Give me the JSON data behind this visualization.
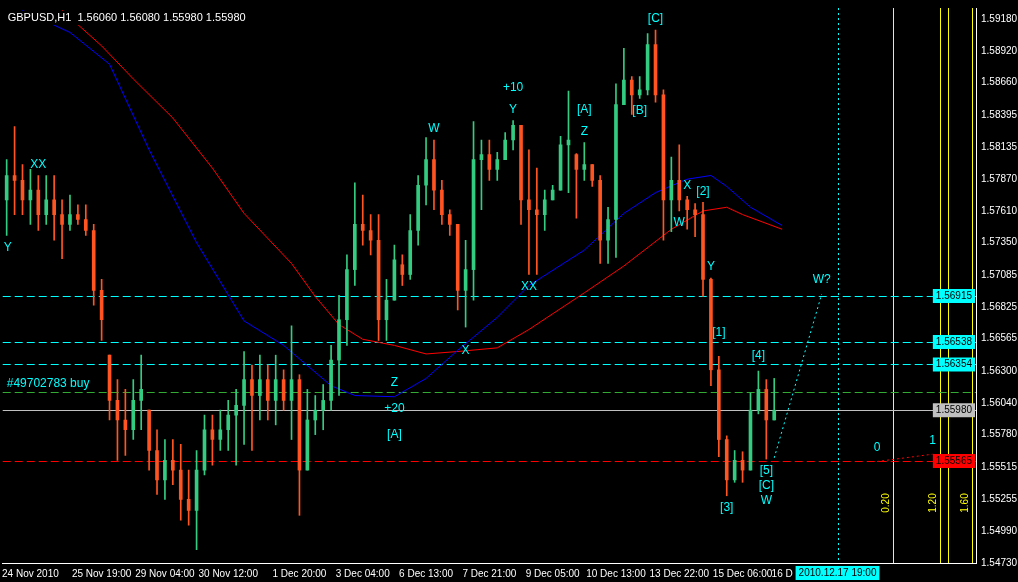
{
  "chart_data": {
    "type": "candlestick",
    "title": "GBPUSD,H1  1.56060 1.56080 1.55980 1.55980",
    "categories": [
      null,
      null,
      null,
      "24 Nov 2010",
      null,
      null,
      null,
      null,
      null,
      null,
      null,
      null,
      "25 Nov 19:00",
      null,
      null,
      null,
      null,
      null,
      null,
      null,
      "29 Nov 04:00",
      null,
      null,
      null,
      null,
      null,
      null,
      null,
      "30 Nov 12:00",
      null,
      null,
      null,
      null,
      null,
      null,
      null,
      null,
      "1 Dec 20:00",
      null,
      null,
      null,
      null,
      null,
      null,
      null,
      "3 Dec 04:00",
      null,
      null,
      null,
      null,
      null,
      null,
      null,
      "6 Dec 13:00",
      null,
      null,
      null,
      null,
      null,
      null,
      null,
      "7 Dec 21:00",
      null,
      null,
      null,
      null,
      null,
      null,
      null,
      "9 Dec 05:00",
      null,
      null,
      null,
      null,
      null,
      null,
      null,
      "10 Dec 13:00",
      null,
      null,
      null,
      null,
      null,
      null,
      null,
      "13 Dec 22:00",
      null,
      null,
      null,
      null,
      null,
      null,
      null,
      "15 Dec 06:00",
      null,
      null,
      null,
      null,
      "16 D",
      null,
      null,
      null,
      null,
      null,
      null,
      "2010.12.17 19:00",
      null,
      null,
      null,
      null,
      null,
      null,
      null,
      null,
      null,
      null,
      null,
      null,
      null,
      null,
      null,
      null,
      null
    ],
    "ylim": [
      1.5473,
      1.5927
    ],
    "yticks": [
      {
        "value": 1.5918,
        "label": "1.59180"
      },
      {
        "value": 1.5892,
        "label": "1.58920"
      },
      {
        "value": 1.5866,
        "label": "1.58660"
      },
      {
        "value": 1.58395,
        "label": "1.58395"
      },
      {
        "value": 1.58135,
        "label": "1.58135"
      },
      {
        "value": 1.5787,
        "label": "1.57870"
      },
      {
        "value": 1.5761,
        "label": "1.57610"
      },
      {
        "value": 1.5735,
        "label": "1.57350"
      },
      {
        "value": 1.57085,
        "label": "1.57085"
      },
      {
        "value": 1.56825,
        "label": "1.56825"
      },
      {
        "value": 1.56565,
        "label": "1.56565"
      },
      {
        "value": 1.563,
        "label": "1.56300"
      },
      {
        "value": 1.5604,
        "label": "1.56040"
      },
      {
        "value": 1.5578,
        "label": "1.55780"
      },
      {
        "value": 1.55515,
        "label": "1.55515"
      },
      {
        "value": 1.55255,
        "label": "1.55255"
      },
      {
        "value": 1.5499,
        "label": "1.54990"
      },
      {
        "value": 1.5473,
        "label": "1.54730"
      }
    ],
    "series": [
      {
        "type": "line",
        "color": "#0000ff",
        "values": [
          null,
          null,
          1.5925,
          null,
          null,
          null,
          null,
          null,
          1.5907,
          null,
          null,
          null,
          null,
          1.5881,
          null,
          null,
          null,
          null,
          1.5811,
          null,
          null,
          null,
          null,
          null,
          1.5735,
          null,
          null,
          null,
          null,
          null,
          1.5671,
          null,
          null,
          null,
          null,
          1.5651,
          null,
          null,
          null,
          null,
          null,
          1.5618,
          null,
          null,
          1.561,
          null,
          null,
          null,
          null,
          1.5609,
          null,
          null,
          null,
          1.5624,
          null,
          null,
          null,
          1.5647,
          null,
          null,
          null,
          null,
          1.5674,
          null,
          null,
          null,
          1.57,
          null,
          null,
          null,
          null,
          null,
          null,
          1.5729,
          null,
          null,
          null,
          null,
          1.5759,
          null,
          null,
          null,
          1.5776,
          null,
          null,
          null,
          1.5787,
          null,
          null,
          1.579,
          null,
          1.5781,
          null,
          null,
          1.5764,
          null,
          null,
          null,
          1.5749,
          null,
          null,
          null,
          null,
          null,
          null,
          null,
          null,
          null,
          null,
          null,
          null,
          null,
          null,
          null,
          null,
          null,
          null,
          null,
          null,
          null,
          null,
          null,
          null
        ]
      },
      {
        "type": "line",
        "color": "#ff0000",
        "values": [
          null,
          null,
          null,
          null,
          null,
          null,
          null,
          1.5925,
          null,
          null,
          null,
          null,
          1.5896,
          null,
          null,
          null,
          1.5869,
          null,
          null,
          null,
          null,
          1.5837,
          null,
          null,
          null,
          null,
          1.5796,
          null,
          null,
          null,
          1.5759,
          null,
          null,
          null,
          null,
          null,
          1.5718,
          null,
          null,
          1.5691,
          null,
          null,
          1.5668,
          null,
          null,
          1.5656,
          null,
          null,
          null,
          1.5651,
          null,
          null,
          null,
          1.5644,
          null,
          null,
          null,
          1.5646,
          null,
          null,
          null,
          null,
          1.5649,
          null,
          null,
          null,
          1.5664,
          null,
          null,
          null,
          null,
          null,
          null,
          1.5694,
          null,
          null,
          null,
          null,
          1.5716,
          null,
          null,
          null,
          null,
          null,
          1.5746,
          null,
          null,
          null,
          1.5761,
          null,
          null,
          1.5764,
          null,
          1.5758,
          null,
          null,
          null,
          null,
          1.5746,
          null,
          null,
          null,
          null,
          null,
          null,
          null,
          null,
          null,
          null,
          null,
          null,
          null,
          null,
          null,
          null,
          null,
          null,
          null,
          null,
          null,
          null,
          null,
          null
        ]
      },
      {
        "type": "line",
        "color": "#00ffff",
        "line_style": "dotted",
        "values": [
          null,
          null,
          null,
          null,
          null,
          null,
          null,
          null,
          null,
          null,
          null,
          null,
          null,
          null,
          null,
          null,
          null,
          null,
          null,
          null,
          null,
          null,
          null,
          null,
          null,
          null,
          null,
          null,
          null,
          null,
          null,
          null,
          null,
          null,
          null,
          null,
          null,
          null,
          null,
          null,
          null,
          null,
          null,
          null,
          null,
          null,
          null,
          null,
          null,
          null,
          null,
          null,
          null,
          null,
          null,
          null,
          null,
          null,
          null,
          null,
          null,
          null,
          null,
          null,
          null,
          null,
          null,
          null,
          null,
          null,
          null,
          null,
          null,
          null,
          null,
          null,
          null,
          null,
          null,
          null,
          null,
          null,
          null,
          null,
          null,
          null,
          null,
          null,
          null,
          null,
          null,
          null,
          null,
          null,
          null,
          null,
          null,
          1.5559,
          null,
          null,
          null,
          null,
          null,
          1.5693,
          null,
          null,
          null,
          null,
          null,
          null,
          null,
          null,
          null,
          null,
          null,
          null,
          null,
          null,
          null,
          null,
          null,
          null,
          null
        ]
      },
      {
        "type": "line",
        "color": "#ff0000",
        "line_style": "dotted",
        "values": [
          null,
          null,
          null,
          null,
          null,
          null,
          null,
          null,
          null,
          null,
          null,
          null,
          null,
          null,
          null,
          null,
          null,
          null,
          null,
          null,
          null,
          null,
          null,
          null,
          null,
          null,
          null,
          null,
          null,
          null,
          null,
          null,
          null,
          null,
          null,
          null,
          null,
          null,
          null,
          null,
          null,
          null,
          null,
          null,
          null,
          null,
          null,
          null,
          null,
          null,
          null,
          null,
          null,
          null,
          null,
          null,
          null,
          null,
          null,
          null,
          null,
          null,
          null,
          null,
          null,
          null,
          null,
          null,
          null,
          null,
          null,
          null,
          null,
          null,
          null,
          null,
          null,
          null,
          null,
          null,
          null,
          null,
          null,
          null,
          null,
          null,
          null,
          null,
          null,
          null,
          null,
          null,
          null,
          null,
          null,
          null,
          null,
          null,
          null,
          null,
          null,
          null,
          null,
          null,
          null,
          null,
          null,
          null,
          null,
          null,
          1.5556,
          null,
          null,
          null,
          null,
          null,
          null,
          1.5562,
          null,
          null,
          null,
          null,
          null
        ]
      },
      {
        "ohlc": [
          [
            1.577,
            1.5803,
            1.5741,
            1.579
          ],
          [
            1.579,
            1.583,
            1.5758,
            1.5786
          ],
          [
            1.5786,
            1.5799,
            1.5758,
            1.577
          ],
          [
            1.577,
            1.5795,
            1.575,
            1.5778
          ],
          [
            1.5778,
            1.579,
            1.5745,
            1.5758
          ],
          [
            1.5758,
            1.579,
            1.575,
            1.577
          ],
          [
            1.577,
            1.579,
            1.5737,
            1.5758
          ],
          [
            1.5758,
            1.577,
            1.5722,
            1.575
          ],
          [
            1.575,
            1.5774,
            1.5745,
            1.5758
          ],
          [
            1.5758,
            1.5766,
            1.575,
            1.5754
          ],
          [
            1.5754,
            1.5766,
            1.5741,
            1.5745
          ],
          [
            1.5745,
            1.575,
            1.5684,
            1.5696
          ],
          [
            1.5696,
            1.5705,
            1.5655,
            1.5672
          ],
          [
            1.5643,
            1.5643,
            1.559,
            1.5606
          ],
          [
            1.5606,
            1.5623,
            1.5557,
            1.559
          ],
          [
            1.559,
            1.5615,
            1.5561,
            1.5582
          ],
          [
            1.5582,
            1.5623,
            1.5574,
            1.5606
          ],
          [
            1.5606,
            1.5643,
            1.5582,
            1.5615
          ],
          [
            1.5598,
            1.5598,
            1.5549,
            1.5565
          ],
          [
            1.5565,
            1.5582,
            1.5529,
            1.5541
          ],
          [
            1.5541,
            1.5574,
            1.5525,
            1.5557
          ],
          [
            1.5557,
            1.5574,
            1.5537,
            1.5549
          ],
          [
            1.5549,
            1.557,
            1.5508,
            1.5525
          ],
          [
            1.5525,
            1.5549,
            1.5504,
            1.5516
          ],
          [
            1.5516,
            1.5565,
            1.5484,
            1.5549
          ],
          [
            1.5549,
            1.5594,
            1.5545,
            1.5582
          ],
          [
            1.5582,
            1.5594,
            1.5553,
            1.5574
          ],
          [
            1.5574,
            1.5598,
            1.5565,
            1.5582
          ],
          [
            1.5582,
            1.5606,
            1.5565,
            1.5594
          ],
          [
            1.5594,
            1.5615,
            1.5553,
            1.5602
          ],
          [
            1.5602,
            1.5646,
            1.557,
            1.5623
          ],
          [
            1.5623,
            1.5635,
            1.5565,
            1.561
          ],
          [
            1.561,
            1.5643,
            1.559,
            1.5623
          ],
          [
            1.5623,
            1.5635,
            1.559,
            1.5606
          ],
          [
            1.5606,
            1.5643,
            1.5586,
            1.5623
          ],
          [
            1.5623,
            1.5631,
            1.5598,
            1.5606
          ],
          [
            1.5606,
            1.5667,
            1.5574,
            1.5623
          ],
          [
            1.5623,
            1.5627,
            1.5512,
            1.5549
          ],
          [
            1.5549,
            1.5615,
            1.5549,
            1.559
          ],
          [
            1.559,
            1.561,
            1.5578,
            1.5598
          ],
          [
            1.5598,
            1.5619,
            1.5582,
            1.5606
          ],
          [
            1.5606,
            1.5651,
            1.5598,
            1.5639
          ],
          [
            1.5639,
            1.5692,
            1.561,
            1.5672
          ],
          [
            1.5672,
            1.5725,
            1.5651,
            1.5713
          ],
          [
            1.5713,
            1.5784,
            1.57,
            1.575
          ],
          [
            1.575,
            1.5774,
            1.5733,
            1.5745
          ],
          [
            1.5745,
            1.5758,
            1.5725,
            1.5737
          ],
          [
            1.5737,
            1.5758,
            1.5655,
            1.5672
          ],
          [
            1.5672,
            1.5705,
            1.5655,
            1.5688
          ],
          [
            1.5688,
            1.5733,
            1.5688,
            1.5721
          ],
          [
            1.5717,
            1.5725,
            1.57,
            1.5709
          ],
          [
            1.5709,
            1.5758,
            1.5705,
            1.5745
          ],
          [
            1.5745,
            1.579,
            1.5733,
            1.5782
          ],
          [
            1.5782,
            1.5821,
            1.5766,
            1.5803
          ],
          [
            1.5803,
            1.5819,
            1.5762,
            1.5778
          ],
          [
            1.5778,
            1.5786,
            1.575,
            1.5758
          ],
          [
            1.5758,
            1.5762,
            1.5741,
            1.575
          ],
          [
            1.575,
            1.575,
            1.568,
            1.5696
          ],
          [
            1.5696,
            1.5737,
            1.5666,
            1.5713
          ],
          [
            1.5713,
            1.5834,
            1.5688,
            1.5803
          ],
          [
            1.5803,
            1.5819,
            1.5762,
            1.5807
          ],
          [
            1.5807,
            1.5819,
            1.5786,
            1.5795
          ],
          [
            1.5795,
            1.5809,
            1.5786,
            1.5803
          ],
          [
            1.5803,
            1.5825,
            1.5803,
            1.5819
          ],
          [
            1.5819,
            1.5835,
            1.5811,
            1.5831
          ],
          [
            1.5831,
            1.5831,
            1.575,
            1.577
          ],
          [
            1.577,
            1.5811,
            1.5709,
            1.5762
          ],
          [
            1.5762,
            1.5796,
            1.5709,
            1.5758
          ],
          [
            1.5758,
            1.5778,
            1.5745,
            1.577
          ],
          [
            1.577,
            1.5782,
            1.577,
            1.5778
          ],
          [
            1.5778,
            1.5822,
            1.5778,
            1.5815
          ],
          [
            1.5815,
            1.5859,
            1.5776,
            1.5819
          ],
          [
            1.5807,
            1.5808,
            1.5755,
            1.5795
          ],
          [
            1.5795,
            1.5817,
            1.5786,
            1.5799
          ],
          [
            1.5799,
            1.5799,
            1.5781,
            1.5786
          ],
          [
            1.5786,
            1.579,
            1.5718,
            1.5737
          ],
          [
            1.5737,
            1.5764,
            1.5718,
            1.5754
          ],
          [
            1.5754,
            1.5865,
            1.5723,
            1.5848
          ],
          [
            1.5848,
            1.5894,
            1.5848,
            1.5868
          ],
          [
            1.5868,
            1.5871,
            1.584,
            1.5856
          ],
          [
            1.5856,
            1.5871,
            1.5853,
            1.586
          ],
          [
            1.586,
            1.5906,
            1.5856,
            1.5897
          ],
          [
            1.5897,
            1.5909,
            1.585,
            1.5856
          ],
          [
            1.5856,
            1.586,
            1.5737,
            1.577
          ],
          [
            1.577,
            1.5805,
            1.5744,
            1.5786
          ],
          [
            1.5786,
            1.5815,
            1.5761,
            1.577
          ],
          [
            1.577,
            1.5773,
            1.5746,
            1.5762
          ],
          [
            1.5762,
            1.5767,
            1.574,
            1.5758
          ],
          [
            1.5758,
            1.5768,
            1.5691,
            1.5705
          ],
          [
            1.5705,
            1.5706,
            1.5618,
            1.5631
          ],
          [
            1.5631,
            1.5642,
            1.556,
            1.5574
          ],
          [
            1.5574,
            1.5577,
            1.5528,
            1.5541
          ],
          [
            1.5541,
            1.5565,
            1.5539,
            1.5557
          ],
          [
            1.5557,
            1.5564,
            1.5539,
            1.5549
          ],
          [
            1.5549,
            1.5612,
            1.5549,
            1.5598
          ],
          [
            1.5598,
            1.563,
            1.5595,
            1.5615
          ],
          [
            1.5615,
            1.5623,
            1.5558,
            1.559
          ],
          [
            1.559,
            1.5624,
            1.559,
            1.5598
          ],
          null,
          null,
          null,
          null,
          null,
          null,
          null,
          null,
          null,
          null,
          null,
          null,
          null,
          null,
          null,
          null,
          null,
          null,
          null,
          null,
          null,
          null,
          null,
          null,
          null
        ],
        "colors": [
          "#33cc80",
          "#ff5522",
          "#ff5522",
          "#33cc80",
          "#ff5522",
          "#33cc80",
          "#ff5522",
          "#ff5522",
          "#33cc80",
          "#ff5522",
          "#ff5522",
          "#ff5522",
          "#ff5522",
          "#ff5522",
          "#ff5522",
          "#ff5522",
          "#33cc80",
          "#33cc80",
          "#ff5522",
          "#ff5522",
          "#33cc80",
          "#ff5522",
          "#ff5522",
          "#ff5522",
          "#33cc80",
          "#33cc80",
          "#ff5522",
          "#33cc80",
          "#33cc80",
          "#33cc80",
          "#33cc80",
          "#ff5522",
          "#33cc80",
          "#ff5522",
          "#33cc80",
          "#ff5522",
          "#33cc80",
          "#ff5522",
          "#33cc80",
          "#33cc80",
          "#33cc80",
          "#33cc80",
          "#33cc80",
          "#33cc80",
          "#33cc80",
          "#ff5522",
          "#ff5522",
          "#ff5522",
          "#33cc80",
          "#33cc80",
          "#ff5522",
          "#33cc80",
          "#33cc80",
          "#33cc80",
          "#ff5522",
          "#ff5522",
          "#ff5522",
          "#ff5522",
          "#33cc80",
          "#33cc80",
          "#33cc80",
          "#ff5522",
          "#33cc80",
          "#33cc80",
          "#33cc80",
          "#ff5522",
          "#ff5522",
          "#ff5522",
          "#33cc80",
          "#33cc80",
          "#33cc80",
          "#33cc80",
          "#ff5522",
          "#33cc80",
          "#ff5522",
          "#ff5522",
          "#33cc80",
          "#33cc80",
          "#33cc80",
          "#ff5522",
          "#33cc80",
          "#33cc80",
          "#ff5522",
          "#ff5522",
          "#33cc80",
          "#ff5522",
          "#ff5522",
          "#ff5522",
          "#ff5522",
          "#ff5522",
          "#ff5522",
          "#ff5522",
          "#33cc80",
          "#ff5522",
          "#33cc80",
          "#33cc80",
          "#ff5522",
          "#33cc80",
          null,
          null,
          null,
          null,
          null,
          null,
          null,
          null,
          null,
          null,
          null,
          null,
          null,
          null,
          null,
          null,
          null,
          null,
          null,
          null,
          null,
          null,
          null,
          null,
          null
        ]
      }
    ],
    "ref_lines": [
      {
        "axis": "y",
        "value": 1.56915,
        "label": "1.56915",
        "color": "#00ffff",
        "line_style": "dashed"
      },
      {
        "axis": "y",
        "value": 1.56538,
        "label": "1.56538",
        "color": "#00ffff",
        "line_style": "dashed"
      },
      {
        "axis": "y",
        "value": 1.56354,
        "label": "1.56354",
        "color": "#00ffff",
        "line_style": "dashed"
      },
      {
        "axis": "y",
        "value": 1.5613,
        "label": null,
        "color": "#33aa33",
        "line_style": "dashed"
      },
      {
        "axis": "y",
        "value": 1.5598,
        "label": "1.55980",
        "color": "#c0c0c0",
        "line_style": "solid"
      },
      {
        "axis": "y",
        "value": 1.55565,
        "label": "1.55565",
        "color": "#ff0000",
        "line_style": "dashed"
      },
      {
        "axis": "x",
        "value": "2010.12.17 19:00",
        "label": null,
        "color": "#00ffff",
        "line_style": "dotted"
      }
    ],
    "annotations": [
      {
        "text": "#49702783 buy",
        "y": 1.5613
      },
      {
        "text": "Y",
        "y": 1.5741
      },
      {
        "text": "XX",
        "y": 1.579
      },
      {
        "text": "Z",
        "y": 1.5609
      },
      {
        "text": "+20",
        "y": 1.5609
      },
      {
        "text": "[A]",
        "y": 1.5609
      },
      {
        "text": "W",
        "y": 1.5819
      },
      {
        "text": "X",
        "y": 1.5666
      },
      {
        "text": "Y",
        "y": 1.5835
      },
      {
        "text": "+10",
        "y": 1.5835
      },
      {
        "text": "XX",
        "y": 1.5709
      },
      {
        "text": "Z",
        "y": 1.5817
      },
      {
        "text": "[A]",
        "y": 1.5817
      },
      {
        "text": "[B]",
        "y": 1.5853
      },
      {
        "text": "[C]",
        "y": 1.5909
      },
      {
        "text": "W",
        "y": 1.5761
      },
      {
        "text": "X",
        "y": 1.5773
      },
      {
        "text": "[2]",
        "y": 1.5768
      },
      {
        "text": "Y",
        "y": 1.5706
      },
      {
        "text": "[1]",
        "y": 1.5642
      },
      {
        "text": "[3]",
        "y": 1.5528
      },
      {
        "text": "[4]",
        "y": 1.563
      },
      {
        "text": "[5]",
        "y": 1.5558
      },
      {
        "text": "[C]",
        "y": 1.5558
      },
      {
        "text": "W",
        "y": 1.5558
      },
      {
        "text": "W?",
        "y": 1.5693
      },
      {
        "text": "0",
        "y": 1.5556
      },
      {
        "text": "1",
        "y": 1.5562
      },
      "0.20",
      "1.20",
      "1.60"
    ]
  }
}
